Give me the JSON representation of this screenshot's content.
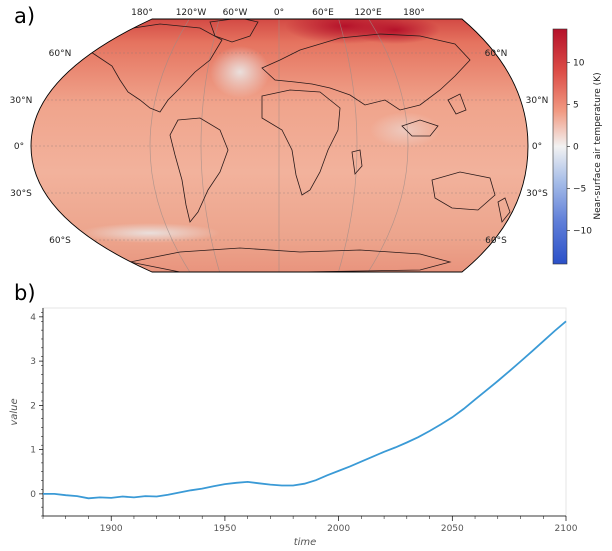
{
  "panels": {
    "a": "a)",
    "b": "b)"
  },
  "chart_data": [
    {
      "type": "heatmap",
      "title": "",
      "projection": "Robinson",
      "lon_labels": [
        "180°",
        "120°W",
        "60°W",
        "0°",
        "60°E",
        "120°E",
        "180°"
      ],
      "lat_labels_left": [
        "60°N",
        "30°N",
        "0°",
        "30°S",
        "60°S"
      ],
      "lat_labels_right": [
        "60°N",
        "30°N",
        "0°",
        "30°S",
        "60°S"
      ],
      "colorbar": {
        "label": "Near-surface air temperature (K)",
        "ticks": [
          "10",
          "5",
          "0",
          "−5",
          "−10"
        ],
        "tick_values": [
          10,
          5,
          0,
          -5,
          -10
        ],
        "range": [
          -14,
          14
        ],
        "colormap": "RdBu_r",
        "colors": {
          "neg": "#2b50c8",
          "mid": "#f2f2f2",
          "pos": "#b5112a"
        }
      }
    },
    {
      "type": "line",
      "title": "",
      "xlabel": "time",
      "ylabel": "value",
      "xlim": [
        1870,
        2100
      ],
      "ylim": [
        -0.5,
        4.2
      ],
      "xticks": [
        "1900",
        "1950",
        "2000",
        "2050",
        "2100"
      ],
      "xtick_values": [
        1900,
        1950,
        2000,
        2050,
        2100
      ],
      "yticks": [
        "0",
        "1",
        "2",
        "3",
        "4"
      ],
      "ytick_values": [
        0,
        1,
        2,
        3,
        4
      ],
      "line_color": "#3a9ad6",
      "series": [
        {
          "x": [
            1870,
            1875,
            1880,
            1885,
            1890,
            1895,
            1900,
            1905,
            1910,
            1915,
            1920,
            1925,
            1930,
            1935,
            1940,
            1945,
            1950,
            1955,
            1960,
            1965,
            1970,
            1975,
            1980,
            1985,
            1990,
            1995,
            2000,
            2005,
            2010,
            2015,
            2020,
            2025,
            2030,
            2035,
            2040,
            2045,
            2050,
            2055,
            2060,
            2065,
            2070,
            2075,
            2080,
            2085,
            2090,
            2095,
            2100
          ],
          "y": [
            0.0,
            0.0,
            -0.03,
            -0.05,
            -0.1,
            -0.08,
            -0.09,
            -0.06,
            -0.08,
            -0.05,
            -0.06,
            -0.02,
            0.03,
            0.08,
            0.12,
            0.17,
            0.22,
            0.25,
            0.27,
            0.24,
            0.21,
            0.19,
            0.19,
            0.23,
            0.31,
            0.42,
            0.52,
            0.62,
            0.73,
            0.84,
            0.95,
            1.05,
            1.16,
            1.28,
            1.42,
            1.57,
            1.73,
            1.92,
            2.13,
            2.34,
            2.55,
            2.77,
            2.99,
            3.22,
            3.45,
            3.68,
            3.9
          ]
        }
      ]
    }
  ]
}
